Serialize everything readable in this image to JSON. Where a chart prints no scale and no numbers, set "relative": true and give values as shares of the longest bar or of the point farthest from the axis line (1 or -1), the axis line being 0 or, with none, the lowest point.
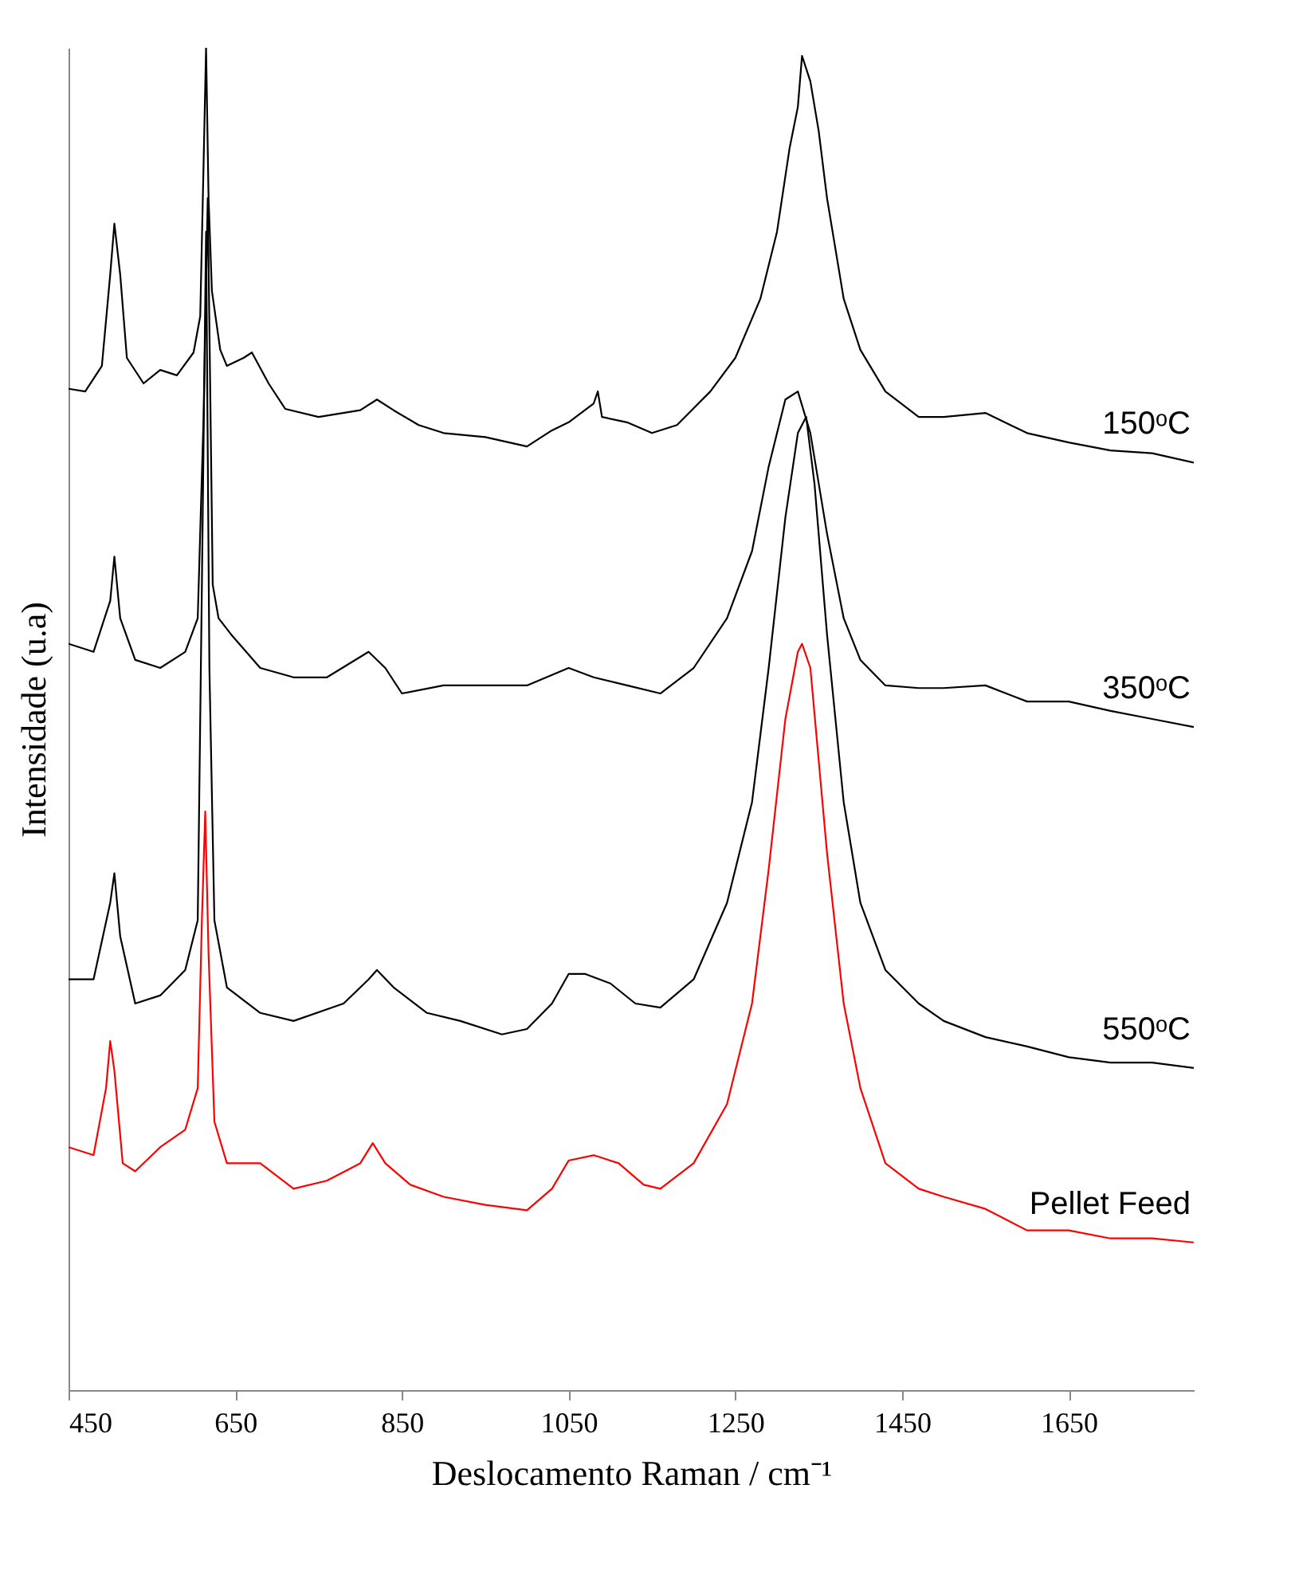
{
  "chart_data": {
    "type": "line",
    "relative": true,
    "xlabel": "Deslocamento Raman / cm⁻¹",
    "ylabel": "Intensidade (u.a)",
    "xlim": [
      450,
      1800
    ],
    "xticks": [
      450,
      650,
      850,
      1050,
      1250,
      1450,
      1650
    ],
    "grid": false,
    "series": [
      {
        "name": "150ᵒC",
        "color": "#000000",
        "x": [
          450,
          470,
          490,
          500,
          505,
          512,
          520,
          540,
          560,
          580,
          600,
          608,
          612,
          615,
          618,
          622,
          632,
          640,
          660,
          670,
          690,
          710,
          750,
          800,
          820,
          840,
          870,
          900,
          950,
          1000,
          1030,
          1050,
          1080,
          1085,
          1090,
          1120,
          1150,
          1180,
          1220,
          1250,
          1280,
          1300,
          1315,
          1325,
          1330,
          1340,
          1350,
          1360,
          1380,
          1400,
          1430,
          1470,
          1500,
          1550,
          1600,
          1650,
          1700,
          1750,
          1800
        ],
        "values": [
          0.746,
          0.744,
          0.763,
          0.831,
          0.869,
          0.831,
          0.769,
          0.75,
          0.76,
          0.756,
          0.773,
          0.8,
          0.913,
          1,
          0.888,
          0.819,
          0.775,
          0.763,
          0.769,
          0.773,
          0.75,
          0.731,
          0.725,
          0.73,
          0.738,
          0.73,
          0.719,
          0.713,
          0.71,
          0.703,
          0.715,
          0.721,
          0.735,
          0.744,
          0.725,
          0.721,
          0.713,
          0.719,
          0.744,
          0.769,
          0.813,
          0.863,
          0.925,
          0.956,
          0.994,
          0.975,
          0.938,
          0.888,
          0.813,
          0.775,
          0.744,
          0.725,
          0.725,
          0.728,
          0.713,
          0.706,
          0.7,
          0.698,
          0.691
        ]
      },
      {
        "name": "350ᵒC",
        "color": "#000000",
        "x": [
          450,
          480,
          500,
          505,
          512,
          530,
          560,
          590,
          605,
          612,
          617,
          623,
          630,
          645,
          680,
          720,
          760,
          810,
          830,
          850,
          900,
          950,
          1000,
          1050,
          1080,
          1120,
          1160,
          1200,
          1240,
          1270,
          1290,
          1310,
          1325,
          1340,
          1360,
          1380,
          1400,
          1430,
          1470,
          1500,
          1550,
          1600,
          1650,
          1700,
          1750,
          1800
        ],
        "values": [
          0.556,
          0.55,
          0.588,
          0.621,
          0.575,
          0.544,
          0.538,
          0.55,
          0.575,
          0.725,
          0.888,
          0.6,
          0.575,
          0.563,
          0.538,
          0.531,
          0.531,
          0.55,
          0.538,
          0.519,
          0.525,
          0.525,
          0.525,
          0.538,
          0.531,
          0.525,
          0.519,
          0.538,
          0.575,
          0.625,
          0.688,
          0.738,
          0.744,
          0.713,
          0.638,
          0.575,
          0.544,
          0.525,
          0.523,
          0.523,
          0.525,
          0.513,
          0.513,
          0.506,
          0.5,
          0.494
        ]
      },
      {
        "name": "550ᵒC",
        "color": "#000000",
        "x": [
          450,
          480,
          500,
          505,
          512,
          530,
          560,
          590,
          605,
          610,
          615,
          619,
          625,
          640,
          680,
          720,
          780,
          810,
          820,
          840,
          880,
          920,
          970,
          1000,
          1030,
          1050,
          1070,
          1100,
          1130,
          1160,
          1200,
          1240,
          1270,
          1290,
          1310,
          1325,
          1335,
          1345,
          1360,
          1380,
          1400,
          1430,
          1470,
          1500,
          1550,
          1600,
          1650,
          1700,
          1750,
          1800
        ],
        "values": [
          0.306,
          0.306,
          0.363,
          0.385,
          0.338,
          0.288,
          0.294,
          0.313,
          0.35,
          0.6,
          0.863,
          0.538,
          0.35,
          0.3,
          0.281,
          0.275,
          0.288,
          0.306,
          0.313,
          0.3,
          0.281,
          0.275,
          0.265,
          0.269,
          0.288,
          0.31,
          0.31,
          0.303,
          0.288,
          0.285,
          0.306,
          0.363,
          0.438,
          0.538,
          0.65,
          0.713,
          0.725,
          0.675,
          0.563,
          0.438,
          0.363,
          0.313,
          0.288,
          0.275,
          0.263,
          0.256,
          0.248,
          0.244,
          0.244,
          0.24
        ]
      },
      {
        "name": "Pellet Feed",
        "color": "#ff0000",
        "x": [
          450,
          480,
          495,
          500,
          505,
          515,
          530,
          560,
          590,
          605,
          610,
          614,
          618,
          625,
          640,
          680,
          720,
          760,
          800,
          815,
          830,
          860,
          900,
          950,
          1000,
          1030,
          1050,
          1080,
          1110,
          1140,
          1160,
          1200,
          1240,
          1270,
          1290,
          1310,
          1325,
          1330,
          1340,
          1360,
          1380,
          1400,
          1430,
          1470,
          1500,
          1550,
          1600,
          1650,
          1700,
          1750,
          1800
        ],
        "values": [
          0.181,
          0.175,
          0.225,
          0.26,
          0.238,
          0.169,
          0.163,
          0.181,
          0.194,
          0.225,
          0.35,
          0.431,
          0.325,
          0.2,
          0.169,
          0.169,
          0.15,
          0.156,
          0.169,
          0.184,
          0.169,
          0.153,
          0.144,
          0.138,
          0.134,
          0.15,
          0.171,
          0.175,
          0.169,
          0.153,
          0.15,
          0.169,
          0.213,
          0.288,
          0.388,
          0.5,
          0.55,
          0.556,
          0.538,
          0.4,
          0.288,
          0.225,
          0.169,
          0.15,
          0.144,
          0.135,
          0.119,
          0.119,
          0.113,
          0.113,
          0.11
        ]
      }
    ]
  }
}
